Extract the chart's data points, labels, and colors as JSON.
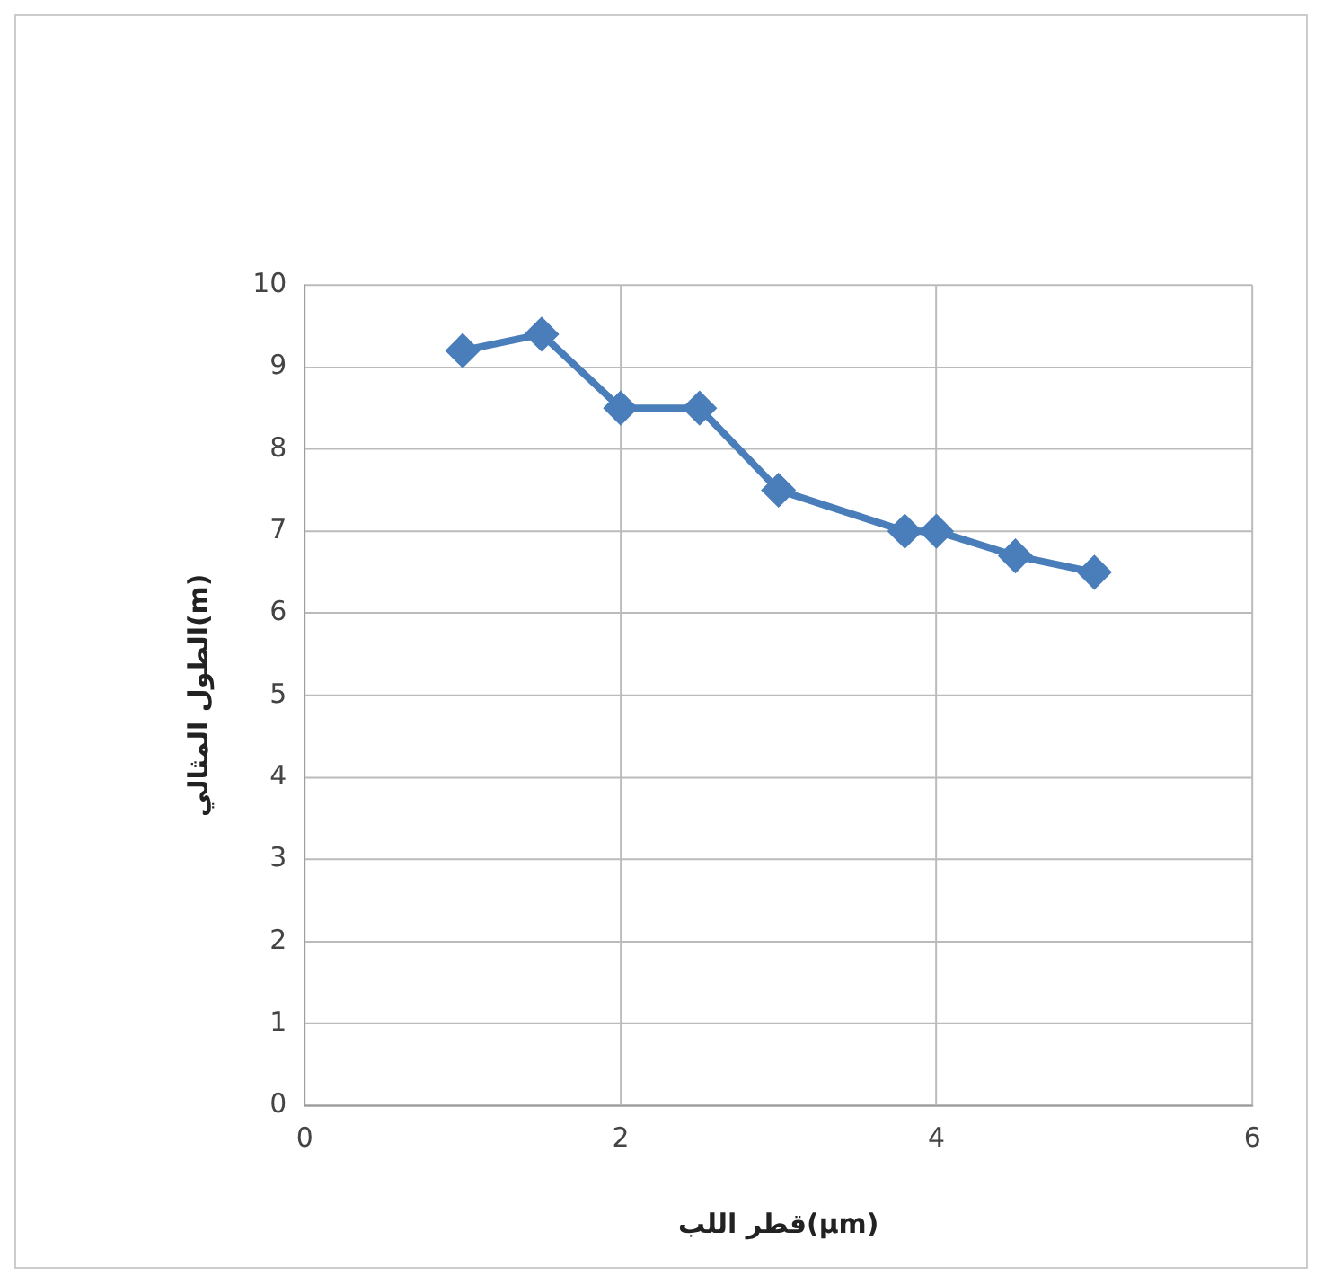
{
  "chart_data": {
    "type": "line",
    "xlabel": "قطر اللب(µm)",
    "ylabel": "الطول المثالي(m)",
    "x": [
      1,
      1.5,
      2,
      2.5,
      3,
      3.8,
      4,
      4.5,
      5
    ],
    "series": [
      {
        "color": "#4a7ebb",
        "values": [
          9.2,
          9.4,
          8.5,
          8.5,
          7.5,
          7,
          7,
          6.7,
          6.5
        ]
      }
    ],
    "xlim": [
      0,
      6
    ],
    "xticks": [
      0,
      2,
      4,
      6
    ],
    "ylim": [
      0,
      10
    ],
    "yticks": [
      0,
      1,
      2,
      3,
      4,
      5,
      6,
      7,
      8,
      9,
      10
    ],
    "grid": true,
    "marker": "diamond",
    "line_style": "solid",
    "legend": false
  }
}
